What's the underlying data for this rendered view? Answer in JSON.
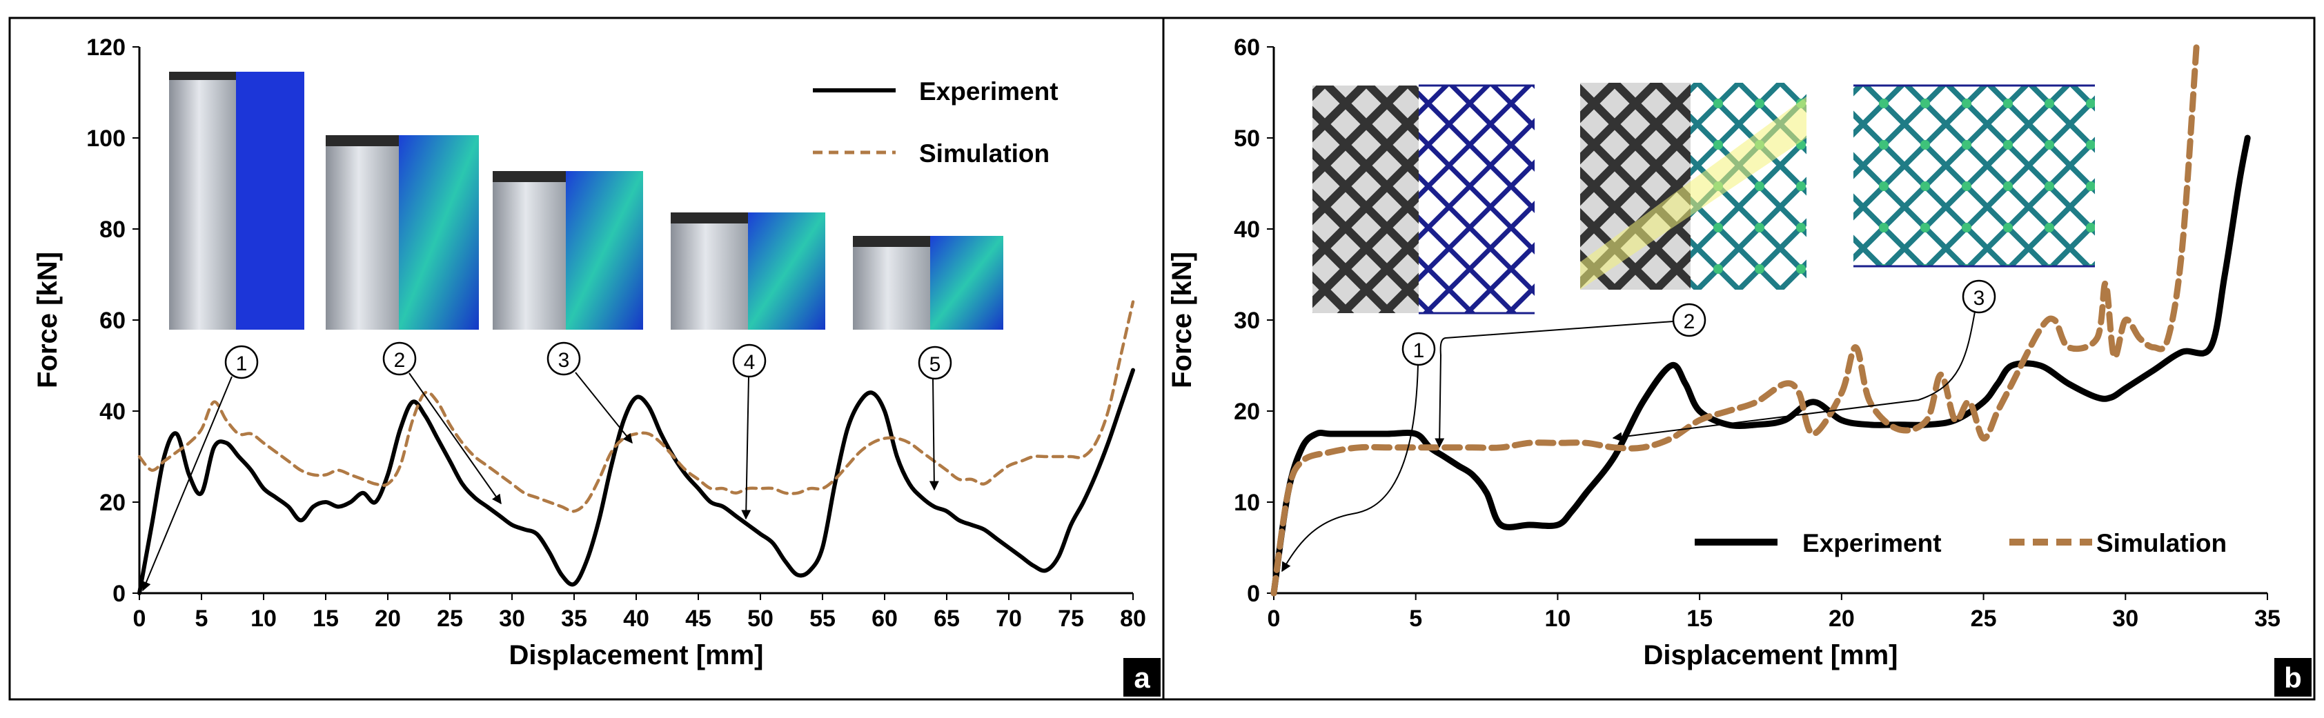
{
  "chart_data": [
    {
      "type": "line",
      "panel_label": "a",
      "xlabel": "Displacement [mm]",
      "ylabel": "Force [kN]",
      "xlim": [
        0,
        80
      ],
      "ylim": [
        0,
        120
      ],
      "xticks": [
        "0",
        "5",
        "10",
        "15",
        "20",
        "25",
        "30",
        "35",
        "40",
        "45",
        "50",
        "55",
        "60",
        "65",
        "70",
        "75",
        "80"
      ],
      "yticks": [
        "0",
        "20",
        "40",
        "60",
        "80",
        "100",
        "120"
      ],
      "grid": false,
      "legend_position": "top-right",
      "series": [
        {
          "name": "Experiment",
          "color": "#000000",
          "style": "solid",
          "x": [
            0,
            1,
            2,
            3,
            4,
            5,
            6,
            7,
            8,
            9,
            10,
            11,
            12,
            13,
            14,
            15,
            16,
            17,
            18,
            19,
            20,
            21,
            22,
            23,
            24,
            25,
            26,
            27,
            28,
            29,
            30,
            31,
            32,
            33,
            34,
            35,
            36,
            37,
            38,
            39,
            40,
            41,
            42,
            43,
            44,
            45,
            46,
            47,
            48,
            49,
            50,
            51,
            52,
            53,
            54,
            55,
            56,
            57,
            58,
            59,
            60,
            61,
            62,
            63,
            64,
            65,
            66,
            67,
            68,
            69,
            70,
            71,
            72,
            73,
            74,
            75,
            76,
            77,
            78,
            79,
            80
          ],
          "values": [
            0,
            15,
            30,
            35,
            26,
            22,
            32,
            33,
            30,
            27,
            23,
            21,
            19,
            16,
            19,
            20,
            19,
            20,
            22,
            20,
            26,
            36,
            42,
            39,
            34,
            29,
            24,
            21,
            19,
            17,
            15,
            14,
            13,
            9,
            4,
            2,
            7,
            16,
            28,
            38,
            43,
            41,
            35,
            30,
            26,
            23,
            20,
            19,
            17,
            15,
            13,
            11,
            7,
            4,
            5,
            10,
            24,
            36,
            42,
            44,
            40,
            30,
            24,
            21,
            19,
            18,
            16,
            15,
            14,
            12,
            10,
            8,
            6,
            5,
            8,
            15,
            20,
            26,
            33,
            41,
            49
          ]
        },
        {
          "name": "Simulation",
          "color": "#B07A45",
          "style": "dashed",
          "x": [
            0,
            1,
            2,
            3,
            4,
            5,
            6,
            7,
            8,
            9,
            10,
            11,
            12,
            13,
            14,
            15,
            16,
            17,
            18,
            19,
            20,
            21,
            22,
            23,
            24,
            25,
            26,
            27,
            28,
            29,
            30,
            31,
            32,
            33,
            34,
            35,
            36,
            37,
            38,
            39,
            40,
            41,
            42,
            43,
            44,
            45,
            46,
            47,
            48,
            49,
            50,
            51,
            52,
            53,
            54,
            55,
            56,
            57,
            58,
            59,
            60,
            61,
            62,
            63,
            64,
            65,
            66,
            67,
            68,
            69,
            70,
            71,
            72,
            73,
            74,
            75,
            76,
            77,
            78,
            79,
            80
          ],
          "values": [
            30,
            27,
            29,
            31,
            33,
            36,
            42,
            38,
            35,
            35,
            33,
            31,
            29,
            27,
            26,
            26,
            27,
            26,
            25,
            24,
            24,
            28,
            38,
            44,
            42,
            37,
            33,
            30,
            28,
            26,
            24,
            22,
            21,
            20,
            19,
            18,
            20,
            25,
            31,
            34,
            35,
            35,
            33,
            30,
            27,
            25,
            23,
            23,
            22,
            23,
            23,
            23,
            22,
            22,
            23,
            23,
            25,
            28,
            31,
            33,
            34,
            34,
            33,
            31,
            29,
            27,
            25,
            25,
            24,
            26,
            28,
            29,
            30,
            30,
            30,
            30,
            30,
            33,
            40,
            52,
            64
          ]
        }
      ],
      "annotations": [
        "1",
        "2",
        "3",
        "4",
        "5"
      ]
    },
    {
      "type": "line",
      "panel_label": "b",
      "xlabel": "Displacement [mm]",
      "ylabel": "Force [kN]",
      "xlim": [
        0,
        35
      ],
      "ylim": [
        0,
        60
      ],
      "xticks": [
        "0",
        "5",
        "10",
        "15",
        "20",
        "25",
        "30",
        "35"
      ],
      "yticks": [
        "0",
        "10",
        "20",
        "30",
        "40",
        "50",
        "60"
      ],
      "grid": false,
      "legend_position": "bottom-right",
      "series": [
        {
          "name": "Experiment",
          "color": "#000000",
          "style": "solid",
          "x": [
            0,
            0.5,
            1,
            1.5,
            2,
            3,
            4,
            5,
            5.5,
            6,
            6.5,
            7,
            7.5,
            8,
            9,
            10,
            10.5,
            11,
            12,
            13,
            14,
            14.5,
            15,
            16,
            17,
            18,
            19,
            20,
            21,
            22,
            23,
            24,
            25,
            25.5,
            26,
            27,
            28,
            29,
            29.5,
            30,
            31,
            32,
            33,
            33.5,
            34,
            34.3
          ],
          "values": [
            0,
            11,
            16,
            17.5,
            17.5,
            17.5,
            17.5,
            17.5,
            16,
            15,
            14,
            13,
            11,
            7.5,
            7.5,
            7.5,
            9,
            11,
            15,
            21,
            25,
            23,
            20,
            18.5,
            18.5,
            19,
            21,
            19,
            18.5,
            18.5,
            18.5,
            19,
            21,
            23,
            25,
            25,
            23,
            21.5,
            21.5,
            22.5,
            24.5,
            26.5,
            27,
            35,
            45,
            50
          ]
        },
        {
          "name": "Simulation",
          "color": "#B07A45",
          "style": "dashed",
          "x": [
            0,
            0.5,
            1,
            2,
            3,
            4,
            5,
            6,
            7,
            8,
            9,
            10,
            11,
            12,
            13,
            14,
            15,
            16,
            17,
            18,
            18.5,
            19,
            20,
            20.5,
            21,
            22,
            23,
            23.5,
            24,
            24.5,
            25,
            25.5,
            26,
            27,
            27.5,
            28,
            29,
            29.3,
            29.6,
            30,
            30.5,
            31,
            31.5,
            32,
            32.5
          ],
          "values": [
            0,
            11,
            14.5,
            15.5,
            16,
            16,
            16,
            16,
            16,
            16,
            16.5,
            16.5,
            16.5,
            16,
            16,
            17,
            19,
            20,
            21,
            23,
            22,
            17.5,
            22,
            27,
            21,
            18,
            19,
            24,
            19,
            21,
            17,
            20,
            23,
            29,
            30,
            27,
            28,
            34,
            26,
            30,
            28,
            27,
            28,
            38,
            60
          ]
        }
      ],
      "annotations": [
        "1",
        "2",
        "3"
      ]
    }
  ]
}
